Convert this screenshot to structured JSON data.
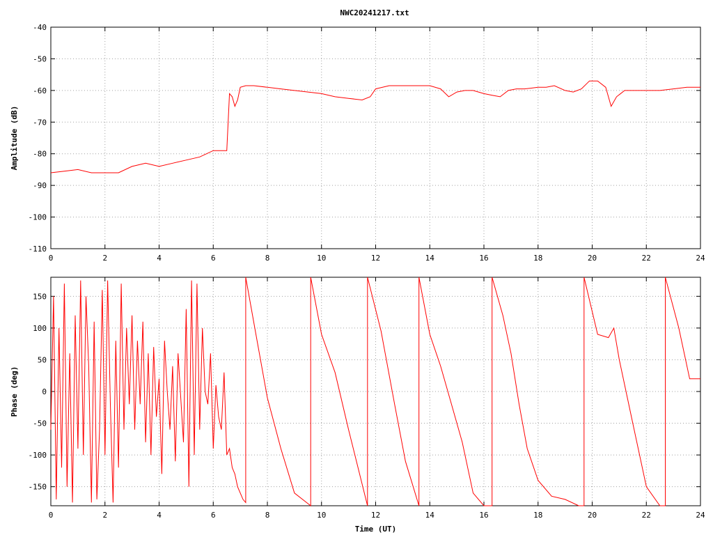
{
  "window": {
    "title": "NWC20241217.txt"
  },
  "chart_data": [
    {
      "type": "line",
      "title": "NWC20241217.txt",
      "xlabel": "",
      "ylabel": "Amplitude (dB)",
      "xlim": [
        0,
        24
      ],
      "ylim": [
        -110,
        -40
      ],
      "x_ticks": [
        "0",
        "2",
        "4",
        "6",
        "8",
        "10",
        "12",
        "14",
        "16",
        "18",
        "20",
        "22",
        "24"
      ],
      "y_ticks": [
        "-40",
        "-50",
        "-60",
        "-70",
        "-80",
        "-90",
        "-100",
        "-110"
      ],
      "grid": true,
      "color": "#ff0000",
      "series": [
        {
          "x": [
            0.0,
            0.5,
            1.0,
            1.5,
            2.0,
            2.5,
            3.0,
            3.5,
            4.0,
            4.5,
            5.0,
            5.5,
            6.0,
            6.3,
            6.5,
            6.6,
            6.7,
            6.8,
            6.9,
            7.0,
            7.2,
            7.5,
            8.0,
            8.5,
            9.0,
            9.5,
            10.0,
            10.5,
            11.0,
            11.5,
            11.8,
            12.0,
            12.5,
            13.0,
            13.5,
            14.0,
            14.4,
            14.7,
            15.0,
            15.3,
            15.6,
            16.0,
            16.3,
            16.6,
            16.9,
            17.2,
            17.5,
            18.0,
            18.3,
            18.6,
            19.0,
            19.3,
            19.6,
            19.9,
            20.2,
            20.5,
            20.7,
            20.9,
            21.2,
            21.5,
            22.0,
            22.5,
            23.0,
            23.5,
            24.0
          ],
          "y": [
            -86,
            -85.5,
            -85,
            -86,
            -86,
            -86,
            -84,
            -83,
            -84,
            -83,
            -82,
            -81,
            -79,
            -79,
            -79,
            -61,
            -62,
            -65,
            -63,
            -59,
            -58.5,
            -58.5,
            -59,
            -59.5,
            -60,
            -60.5,
            -61,
            -62,
            -62.5,
            -63,
            -62,
            -59.5,
            -58.5,
            -58.5,
            -58.5,
            -58.5,
            -59.5,
            -62,
            -60.5,
            -60,
            -60,
            -61,
            -61.5,
            -62,
            -60,
            -59.5,
            -59.5,
            -59,
            -59,
            -58.5,
            -60,
            -60.5,
            -59.5,
            -57,
            -57,
            -59,
            -65,
            -62,
            -60,
            -60,
            -60,
            -60,
            -59.5,
            -59,
            -59
          ]
        }
      ]
    },
    {
      "type": "line",
      "title": "",
      "xlabel": "Time (UT)",
      "ylabel": "Phase (deg)",
      "xlim": [
        0,
        24
      ],
      "ylim": [
        -180,
        180
      ],
      "x_ticks": [
        "0",
        "2",
        "4",
        "6",
        "8",
        "10",
        "12",
        "14",
        "16",
        "18",
        "20",
        "22",
        "24"
      ],
      "y_ticks": [
        "150",
        "100",
        "50",
        "0",
        "-50",
        "-100",
        "-150"
      ],
      "grid": true,
      "color": "#ff0000",
      "series": [
        {
          "x": [
            0.0,
            0.1,
            0.2,
            0.3,
            0.4,
            0.5,
            0.6,
            0.7,
            0.8,
            0.9,
            1.0,
            1.1,
            1.2,
            1.3,
            1.4,
            1.5,
            1.6,
            1.7,
            1.8,
            1.9,
            2.0,
            2.1,
            2.2,
            2.3,
            2.4,
            2.5,
            2.6,
            2.7,
            2.8,
            2.9,
            3.0,
            3.1,
            3.2,
            3.3,
            3.4,
            3.5,
            3.6,
            3.7,
            3.8,
            3.9,
            4.0,
            4.1,
            4.2,
            4.3,
            4.4,
            4.5,
            4.6,
            4.7,
            4.8,
            4.9,
            5.0,
            5.1,
            5.2,
            5.3,
            5.4,
            5.5,
            5.6,
            5.7,
            5.8,
            5.9,
            6.0,
            6.1,
            6.2,
            6.3,
            6.4,
            6.5,
            6.6,
            6.7,
            6.8,
            6.9,
            7.0,
            7.1,
            7.2,
            7.2,
            7.6,
            8.0,
            8.5,
            9.0,
            9.6,
            9.6,
            10.0,
            10.5,
            11.0,
            11.7,
            11.7,
            12.2,
            12.7,
            13.1,
            13.6,
            13.6,
            14.0,
            14.4,
            14.8,
            15.2,
            15.6,
            16.0,
            16.3,
            16.3,
            16.5,
            16.7,
            17.0,
            17.3,
            17.6,
            18.0,
            18.5,
            19.0,
            19.5,
            19.7,
            19.7,
            20.2,
            20.6,
            20.8,
            21.0,
            21.5,
            22.0,
            22.5,
            22.7,
            22.7,
            23.2,
            23.6,
            24.0
          ],
          "y": [
            -60,
            150,
            -170,
            100,
            -120,
            170,
            -150,
            60,
            -175,
            120,
            -90,
            175,
            -100,
            150,
            40,
            -175,
            110,
            -170,
            -60,
            160,
            -100,
            175,
            -20,
            -175,
            80,
            -120,
            170,
            -60,
            100,
            -20,
            120,
            -60,
            80,
            -20,
            110,
            -80,
            60,
            -100,
            70,
            -40,
            20,
            -130,
            80,
            0,
            -60,
            40,
            -110,
            60,
            -10,
            -80,
            130,
            -150,
            175,
            -100,
            170,
            -60,
            100,
            0,
            -20,
            60,
            -90,
            10,
            -40,
            -60,
            30,
            -100,
            -90,
            -120,
            -130,
            -150,
            -160,
            -170,
            -175,
            180,
            85,
            -10,
            -90,
            -160,
            -180,
            180,
            90,
            30,
            -60,
            -180,
            180,
            95,
            -20,
            -110,
            -180,
            180,
            90,
            40,
            -20,
            -80,
            -160,
            -180,
            -180,
            180,
            150,
            120,
            60,
            -20,
            -90,
            -140,
            -165,
            -170,
            -180,
            -180,
            180,
            90,
            85,
            100,
            50,
            -50,
            -150,
            -180,
            -180,
            180,
            100,
            20,
            20
          ]
        }
      ]
    }
  ]
}
